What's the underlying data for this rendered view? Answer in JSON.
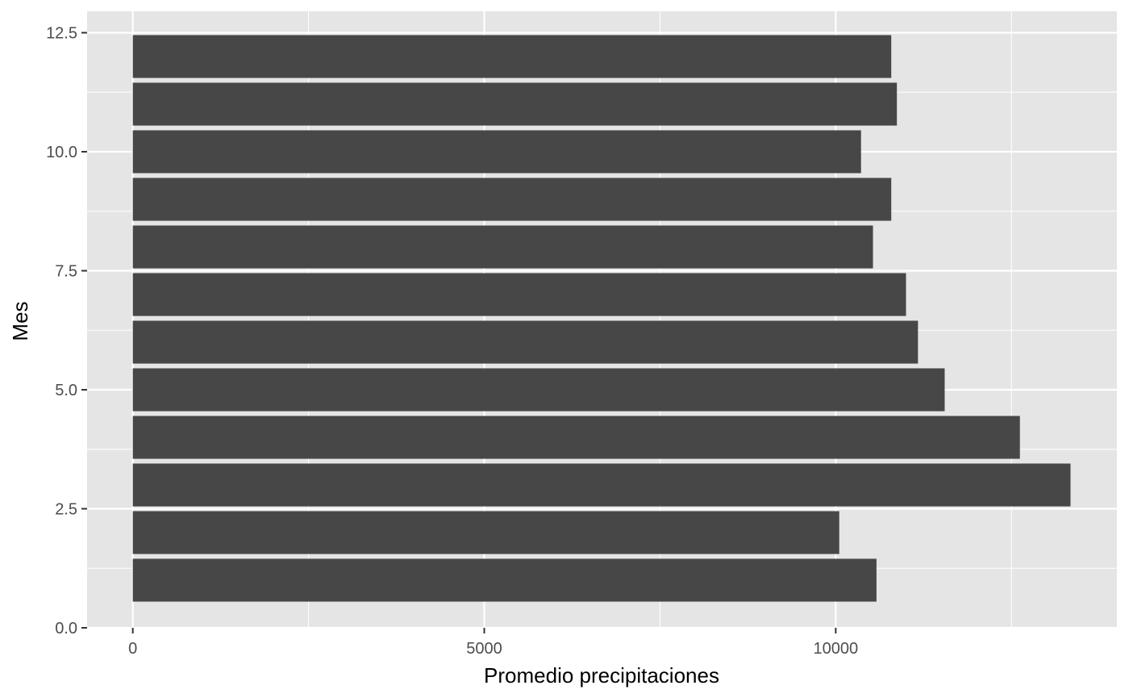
{
  "chart_data": {
    "type": "bar",
    "orientation": "horizontal",
    "title": "",
    "xlabel": "Promedio precipitaciones",
    "ylabel": "Mes",
    "categories": [
      1,
      2,
      3,
      4,
      5,
      6,
      7,
      8,
      9,
      10,
      11,
      12
    ],
    "values": [
      10580,
      10050,
      13340,
      12620,
      11550,
      11170,
      11000,
      10530,
      10790,
      10360,
      10870,
      10790
    ],
    "xlim": [
      -650,
      14000
    ],
    "ylim": [
      0,
      12.95
    ],
    "xticks": [
      0,
      5000,
      10000
    ],
    "xtick_labels": [
      "0",
      "5000",
      "10000"
    ],
    "yticks": [
      0,
      2.5,
      5,
      7.5,
      10,
      12.5
    ],
    "ytick_labels": [
      "0.0",
      "2.5",
      "5.0",
      "7.5",
      "10.0",
      "12.5"
    ],
    "grid": true,
    "legend": "none",
    "colors": {
      "bar": "#474747",
      "panel": "#e5e5e5",
      "grid": "#ffffff"
    }
  }
}
